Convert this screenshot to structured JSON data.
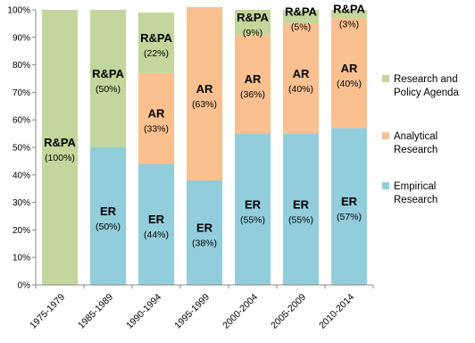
{
  "chart_data": {
    "type": "bar",
    "stacked": true,
    "categories": [
      "1975-1979",
      "1985-1989",
      "1990-1994",
      "1995-1999",
      "2000-2004",
      "2005-2009",
      "2010-2014"
    ],
    "series": [
      {
        "name": "Empirical Research",
        "short": "ER",
        "color": "#92CDDC",
        "values": [
          0,
          50,
          44,
          38,
          55,
          55,
          57
        ],
        "labels": [
          "",
          "(50%)",
          "(44%)",
          "(38%)",
          "(55%)",
          "(55%)",
          "(57%)"
        ]
      },
      {
        "name": "Analytical Research",
        "short": "AR",
        "color": "#FAC08F",
        "values": [
          0,
          0,
          33,
          63,
          36,
          40,
          40
        ],
        "labels": [
          "",
          "",
          "(33%)",
          "(63%)",
          "(36%)",
          "(40%)",
          "(40%)"
        ]
      },
      {
        "name": "Research and Policy Agenda",
        "legend_lines": [
          "Research and",
          "Policy Agenda"
        ],
        "short": "R&PA",
        "color": "#C3D69B",
        "values": [
          100,
          50,
          22,
          0,
          9,
          5,
          3
        ],
        "labels": [
          "(100%)",
          "(50%)",
          "(22%)",
          "",
          "(9%)",
          "(5%)",
          "(3%)"
        ]
      }
    ],
    "legend": [
      {
        "lines": [
          "Research and",
          "Policy Agenda"
        ],
        "color": "#C3D69B"
      },
      {
        "lines": [
          "Analytical",
          "Research"
        ],
        "color": "#FAC08F"
      },
      {
        "lines": [
          "Empirical",
          "Research"
        ],
        "color": "#92CDDC"
      }
    ],
    "y_ticks": [
      "0%",
      "10%",
      "20%",
      "30%",
      "40%",
      "50%",
      "60%",
      "70%",
      "80%",
      "90%",
      "100%"
    ],
    "ylim": [
      0,
      100
    ],
    "grid": false,
    "legend_position": "right",
    "title": "",
    "xlabel": "",
    "ylabel": ""
  }
}
